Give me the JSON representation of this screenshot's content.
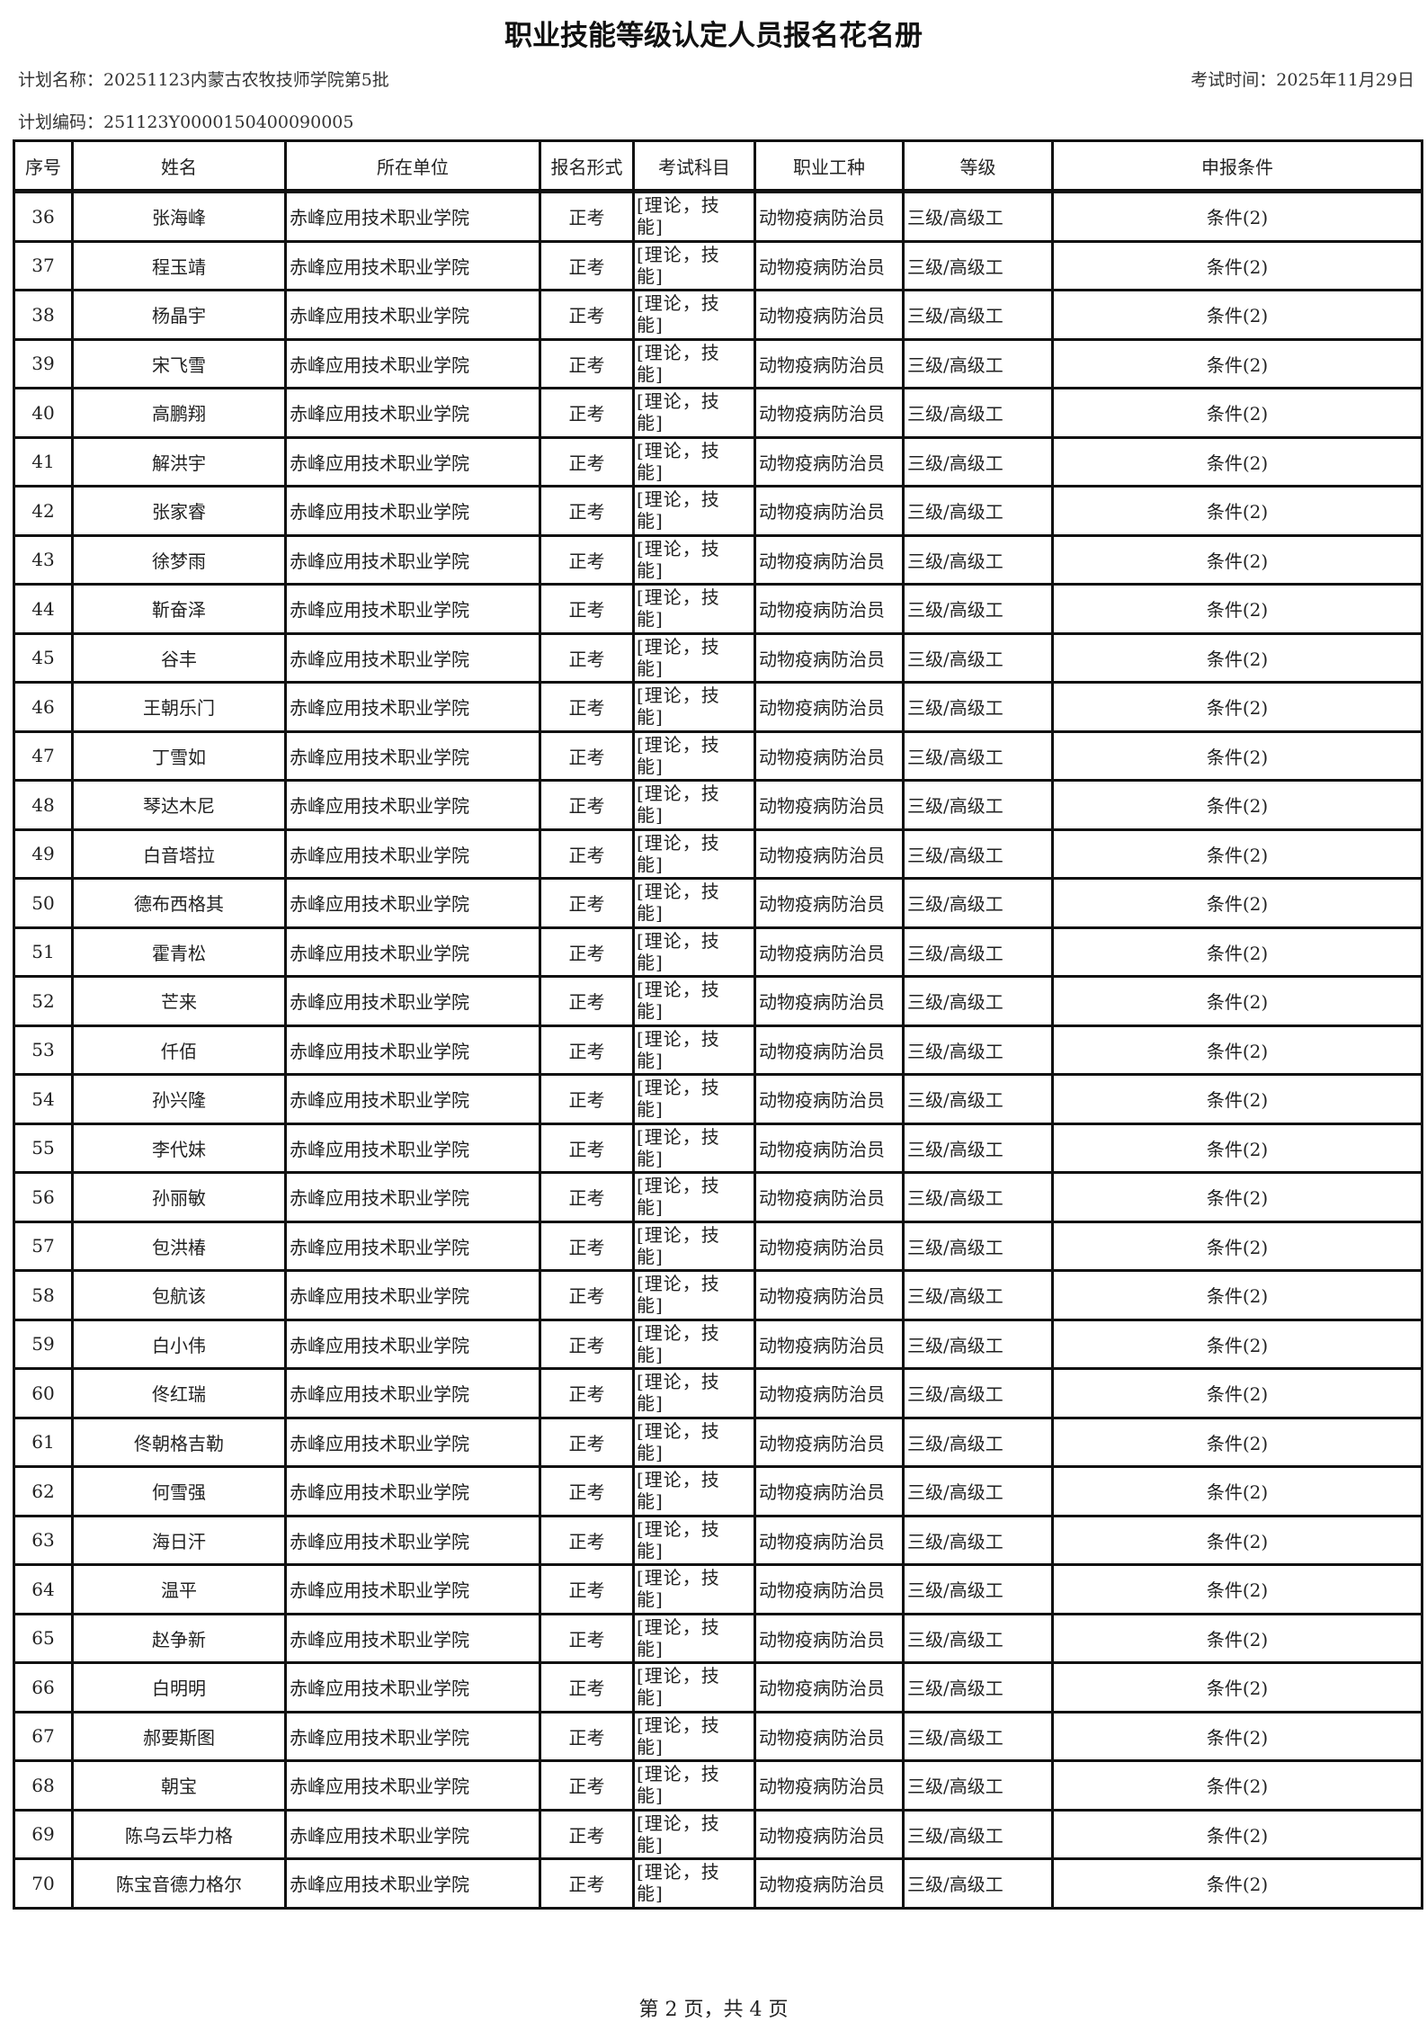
{
  "document": {
    "title": "职业技能等级认定人员报名花名册",
    "plan_name": "计划名称：20251123内蒙古农牧技师学院第5批",
    "exam_time": "考试时间：2025年11月29日",
    "plan_code": "计划编码：251123Y0000150400090005",
    "footer": "第 2 页，共 4 页"
  },
  "table": {
    "headers": [
      "序号",
      "姓名",
      "所在单位",
      "报名形式",
      "考试科目",
      "职业工种",
      "等级",
      "申报条件"
    ],
    "rows": [
      {
        "no": "36",
        "name": "张海峰",
        "unit": "赤峰应用技术职业学院",
        "form": "正考",
        "subject": "[理论，技能]",
        "job": "动物疫病防治员",
        "level": "三级/高级工",
        "condition": "条件(2)"
      },
      {
        "no": "37",
        "name": "程玉靖",
        "unit": "赤峰应用技术职业学院",
        "form": "正考",
        "subject": "[理论，技能]",
        "job": "动物疫病防治员",
        "level": "三级/高级工",
        "condition": "条件(2)"
      },
      {
        "no": "38",
        "name": "杨晶宇",
        "unit": "赤峰应用技术职业学院",
        "form": "正考",
        "subject": "[理论，技能]",
        "job": "动物疫病防治员",
        "level": "三级/高级工",
        "condition": "条件(2)"
      },
      {
        "no": "39",
        "name": "宋飞雪",
        "unit": "赤峰应用技术职业学院",
        "form": "正考",
        "subject": "[理论，技能]",
        "job": "动物疫病防治员",
        "level": "三级/高级工",
        "condition": "条件(2)"
      },
      {
        "no": "40",
        "name": "高鹏翔",
        "unit": "赤峰应用技术职业学院",
        "form": "正考",
        "subject": "[理论，技能]",
        "job": "动物疫病防治员",
        "level": "三级/高级工",
        "condition": "条件(2)"
      },
      {
        "no": "41",
        "name": "解洪宇",
        "unit": "赤峰应用技术职业学院",
        "form": "正考",
        "subject": "[理论，技能]",
        "job": "动物疫病防治员",
        "level": "三级/高级工",
        "condition": "条件(2)"
      },
      {
        "no": "42",
        "name": "张家睿",
        "unit": "赤峰应用技术职业学院",
        "form": "正考",
        "subject": "[理论，技能]",
        "job": "动物疫病防治员",
        "level": "三级/高级工",
        "condition": "条件(2)"
      },
      {
        "no": "43",
        "name": "徐梦雨",
        "unit": "赤峰应用技术职业学院",
        "form": "正考",
        "subject": "[理论，技能]",
        "job": "动物疫病防治员",
        "level": "三级/高级工",
        "condition": "条件(2)"
      },
      {
        "no": "44",
        "name": "靳奋泽",
        "unit": "赤峰应用技术职业学院",
        "form": "正考",
        "subject": "[理论，技能]",
        "job": "动物疫病防治员",
        "level": "三级/高级工",
        "condition": "条件(2)"
      },
      {
        "no": "45",
        "name": "谷丰",
        "unit": "赤峰应用技术职业学院",
        "form": "正考",
        "subject": "[理论，技能]",
        "job": "动物疫病防治员",
        "level": "三级/高级工",
        "condition": "条件(2)"
      },
      {
        "no": "46",
        "name": "王朝乐门",
        "unit": "赤峰应用技术职业学院",
        "form": "正考",
        "subject": "[理论，技能]",
        "job": "动物疫病防治员",
        "level": "三级/高级工",
        "condition": "条件(2)"
      },
      {
        "no": "47",
        "name": "丁雪如",
        "unit": "赤峰应用技术职业学院",
        "form": "正考",
        "subject": "[理论，技能]",
        "job": "动物疫病防治员",
        "level": "三级/高级工",
        "condition": "条件(2)"
      },
      {
        "no": "48",
        "name": "琴达木尼",
        "unit": "赤峰应用技术职业学院",
        "form": "正考",
        "subject": "[理论，技能]",
        "job": "动物疫病防治员",
        "level": "三级/高级工",
        "condition": "条件(2)"
      },
      {
        "no": "49",
        "name": "白音塔拉",
        "unit": "赤峰应用技术职业学院",
        "form": "正考",
        "subject": "[理论，技能]",
        "job": "动物疫病防治员",
        "level": "三级/高级工",
        "condition": "条件(2)"
      },
      {
        "no": "50",
        "name": "德布西格其",
        "unit": "赤峰应用技术职业学院",
        "form": "正考",
        "subject": "[理论，技能]",
        "job": "动物疫病防治员",
        "level": "三级/高级工",
        "condition": "条件(2)"
      },
      {
        "no": "51",
        "name": "霍青松",
        "unit": "赤峰应用技术职业学院",
        "form": "正考",
        "subject": "[理论，技能]",
        "job": "动物疫病防治员",
        "level": "三级/高级工",
        "condition": "条件(2)"
      },
      {
        "no": "52",
        "name": "芒来",
        "unit": "赤峰应用技术职业学院",
        "form": "正考",
        "subject": "[理论，技能]",
        "job": "动物疫病防治员",
        "level": "三级/高级工",
        "condition": "条件(2)"
      },
      {
        "no": "53",
        "name": "仟佰",
        "unit": "赤峰应用技术职业学院",
        "form": "正考",
        "subject": "[理论，技能]",
        "job": "动物疫病防治员",
        "level": "三级/高级工",
        "condition": "条件(2)"
      },
      {
        "no": "54",
        "name": "孙兴隆",
        "unit": "赤峰应用技术职业学院",
        "form": "正考",
        "subject": "[理论，技能]",
        "job": "动物疫病防治员",
        "level": "三级/高级工",
        "condition": "条件(2)"
      },
      {
        "no": "55",
        "name": "李代妹",
        "unit": "赤峰应用技术职业学院",
        "form": "正考",
        "subject": "[理论，技能]",
        "job": "动物疫病防治员",
        "level": "三级/高级工",
        "condition": "条件(2)"
      },
      {
        "no": "56",
        "name": "孙丽敏",
        "unit": "赤峰应用技术职业学院",
        "form": "正考",
        "subject": "[理论，技能]",
        "job": "动物疫病防治员",
        "level": "三级/高级工",
        "condition": "条件(2)"
      },
      {
        "no": "57",
        "name": "包洪椿",
        "unit": "赤峰应用技术职业学院",
        "form": "正考",
        "subject": "[理论，技能]",
        "job": "动物疫病防治员",
        "level": "三级/高级工",
        "condition": "条件(2)"
      },
      {
        "no": "58",
        "name": "包航该",
        "unit": "赤峰应用技术职业学院",
        "form": "正考",
        "subject": "[理论，技能]",
        "job": "动物疫病防治员",
        "level": "三级/高级工",
        "condition": "条件(2)"
      },
      {
        "no": "59",
        "name": "白小伟",
        "unit": "赤峰应用技术职业学院",
        "form": "正考",
        "subject": "[理论，技能]",
        "job": "动物疫病防治员",
        "level": "三级/高级工",
        "condition": "条件(2)"
      },
      {
        "no": "60",
        "name": "佟红瑞",
        "unit": "赤峰应用技术职业学院",
        "form": "正考",
        "subject": "[理论，技能]",
        "job": "动物疫病防治员",
        "level": "三级/高级工",
        "condition": "条件(2)"
      },
      {
        "no": "61",
        "name": "佟朝格吉勒",
        "unit": "赤峰应用技术职业学院",
        "form": "正考",
        "subject": "[理论，技能]",
        "job": "动物疫病防治员",
        "level": "三级/高级工",
        "condition": "条件(2)"
      },
      {
        "no": "62",
        "name": "何雪强",
        "unit": "赤峰应用技术职业学院",
        "form": "正考",
        "subject": "[理论，技能]",
        "job": "动物疫病防治员",
        "level": "三级/高级工",
        "condition": "条件(2)"
      },
      {
        "no": "63",
        "name": "海日汗",
        "unit": "赤峰应用技术职业学院",
        "form": "正考",
        "subject": "[理论，技能]",
        "job": "动物疫病防治员",
        "level": "三级/高级工",
        "condition": "条件(2)"
      },
      {
        "no": "64",
        "name": "温平",
        "unit": "赤峰应用技术职业学院",
        "form": "正考",
        "subject": "[理论，技能]",
        "job": "动物疫病防治员",
        "level": "三级/高级工",
        "condition": "条件(2)"
      },
      {
        "no": "65",
        "name": "赵争新",
        "unit": "赤峰应用技术职业学院",
        "form": "正考",
        "subject": "[理论，技能]",
        "job": "动物疫病防治员",
        "level": "三级/高级工",
        "condition": "条件(2)"
      },
      {
        "no": "66",
        "name": "白明明",
        "unit": "赤峰应用技术职业学院",
        "form": "正考",
        "subject": "[理论，技能]",
        "job": "动物疫病防治员",
        "level": "三级/高级工",
        "condition": "条件(2)"
      },
      {
        "no": "67",
        "name": "郝要斯图",
        "unit": "赤峰应用技术职业学院",
        "form": "正考",
        "subject": "[理论，技能]",
        "job": "动物疫病防治员",
        "level": "三级/高级工",
        "condition": "条件(2)"
      },
      {
        "no": "68",
        "name": "朝宝",
        "unit": "赤峰应用技术职业学院",
        "form": "正考",
        "subject": "[理论，技能]",
        "job": "动物疫病防治员",
        "level": "三级/高级工",
        "condition": "条件(2)"
      },
      {
        "no": "69",
        "name": "陈乌云毕力格",
        "unit": "赤峰应用技术职业学院",
        "form": "正考",
        "subject": "[理论，技能]",
        "job": "动物疫病防治员",
        "level": "三级/高级工",
        "condition": "条件(2)"
      },
      {
        "no": "70",
        "name": "陈宝音德力格尔",
        "unit": "赤峰应用技术职业学院",
        "form": "正考",
        "subject": "[理论，技能]",
        "job": "动物疫病防治员",
        "level": "三级/高级工",
        "condition": "条件(2)"
      }
    ]
  }
}
